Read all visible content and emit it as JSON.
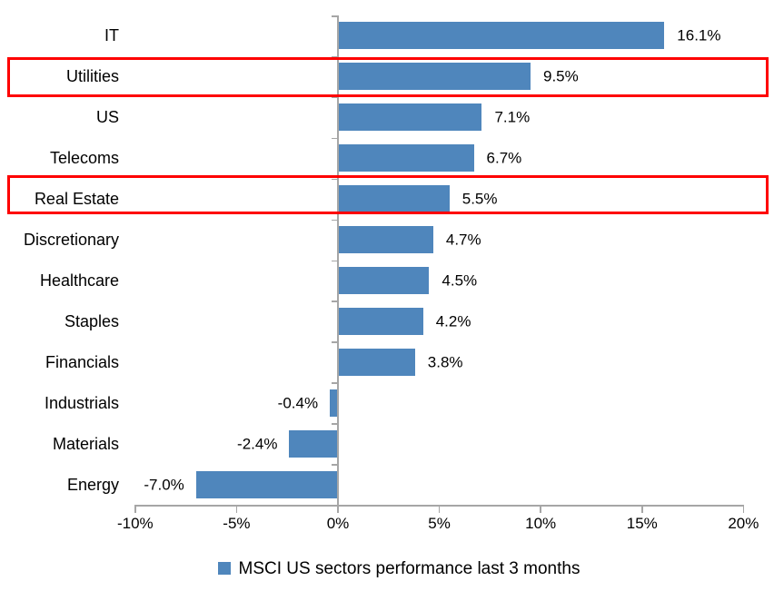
{
  "chart_data": {
    "type": "bar",
    "orientation": "horizontal",
    "title": "",
    "categories": [
      "IT",
      "Utilities",
      "US",
      "Telecoms",
      "Real Estate",
      "Discretionary",
      "Healthcare",
      "Staples",
      "Financials",
      "Industrials",
      "Materials",
      "Energy"
    ],
    "values": [
      16.1,
      9.5,
      7.1,
      6.7,
      5.5,
      4.7,
      4.5,
      4.2,
      3.8,
      -0.4,
      -2.4,
      -7.0
    ],
    "value_labels": [
      "16.1%",
      "9.5%",
      "7.1%",
      "6.7%",
      "5.5%",
      "4.7%",
      "4.5%",
      "4.2%",
      "3.8%",
      "-0.4%",
      "-2.4%",
      "-7.0%"
    ],
    "xlim": [
      -10,
      20
    ],
    "x_tick_values": [
      -10,
      -5,
      0,
      5,
      10,
      15,
      20
    ],
    "x_tick_labels": [
      "-10%",
      "-5%",
      "0%",
      "5%",
      "10%",
      "15%",
      "20%"
    ],
    "grid": "off",
    "legend_position": "bottom",
    "legend_label": "MSCI US sectors performance last 3 months",
    "highlighted_categories": [
      "Utilities",
      "Real Estate"
    ],
    "colors": {
      "bar": "#4F86BC",
      "highlight_box": "#FE0000",
      "axis": "#A6A6A6",
      "text": "#000000"
    }
  }
}
